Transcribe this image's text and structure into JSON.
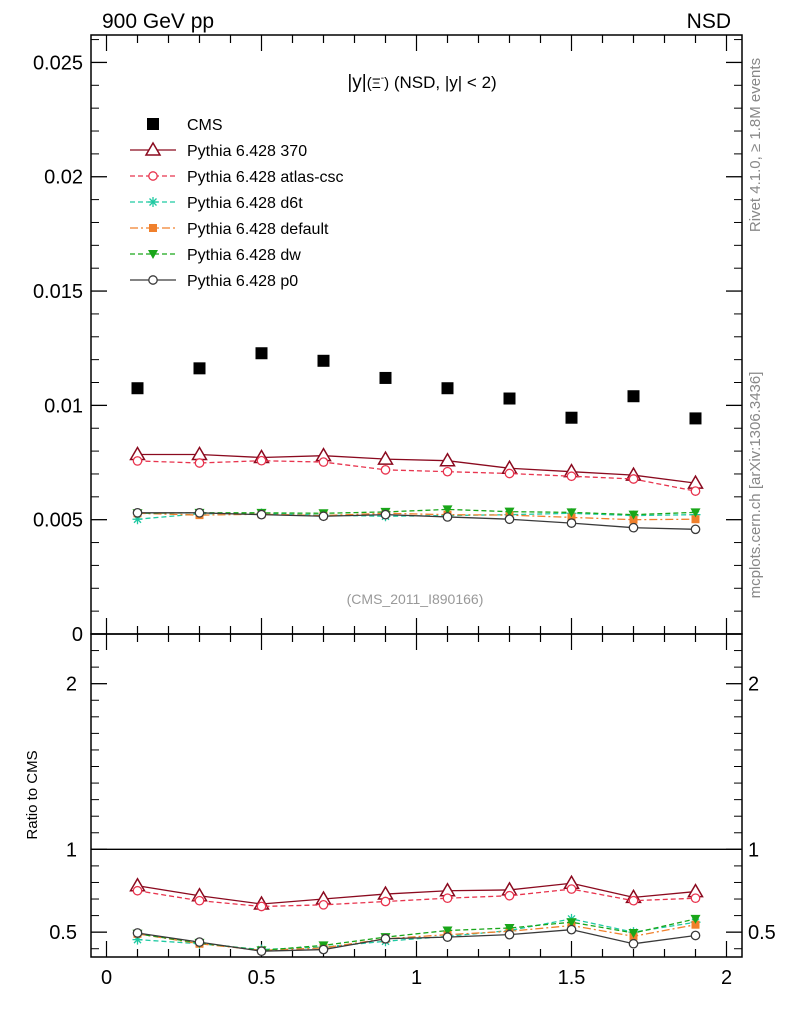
{
  "header": {
    "left": "900 GeV pp",
    "right": "NSD"
  },
  "side_labels": {
    "top": "Rivet 4.1.0, ≥ 1.8M events",
    "bottom": "mcplots.cern.ch [arXiv:1306.3436]"
  },
  "watermark": "(CMS_2011_I890166)",
  "colors": {
    "cms": "#000000",
    "p370": "#8b0a1f",
    "atlas": "#e8344e",
    "d6t": "#1fc9a2",
    "default": "#f0802c",
    "dw": "#19a619",
    "p0": "#3a3a3a"
  },
  "chart_data": [
    {
      "type": "scatter",
      "title": "|y|(Ξ⁻) (NSD, |y| < 2)",
      "title_parts": {
        "y": "|y|",
        "open": "(",
        "xi": "Ξ",
        "minus": "-",
        "close": ")",
        "rest": " (NSD, |y| < 2)"
      },
      "xlabel": "",
      "ylabel": "",
      "xlim": [
        -0.05,
        2.05
      ],
      "ylim": [
        0,
        0.0262
      ],
      "y_ticks": [
        0,
        0.005,
        0.01,
        0.015,
        0.02,
        0.025
      ],
      "y_tick_labels": [
        "0",
        "0.005",
        "0.01",
        "0.015",
        "0.02",
        "0.025"
      ],
      "legend_position": "top-left",
      "x": [
        0.1,
        0.3,
        0.5,
        0.7,
        0.9,
        1.1,
        1.3,
        1.5,
        1.7,
        1.9
      ],
      "series": [
        {
          "name": "CMS",
          "key": "cms",
          "marker": "square-filled",
          "line": "none",
          "values": [
            0.01075,
            0.01162,
            0.01228,
            0.01195,
            0.0112,
            0.01075,
            0.0103,
            0.00946,
            0.0104,
            0.00943
          ]
        },
        {
          "name": "Pythia 6.428 370",
          "key": "p370",
          "marker": "triangle-open",
          "line": "solid",
          "values": [
            0.00785,
            0.00785,
            0.00772,
            0.0078,
            0.00765,
            0.00758,
            0.00725,
            0.0071,
            0.00695,
            0.0066
          ]
        },
        {
          "name": "Pythia 6.428 atlas-csc",
          "key": "atlas",
          "marker": "circle-open",
          "line": "dashed",
          "values": [
            0.00757,
            0.00748,
            0.00758,
            0.00752,
            0.00718,
            0.0071,
            0.00702,
            0.0069,
            0.00678,
            0.00625
          ]
        },
        {
          "name": "Pythia 6.428 d6t",
          "key": "d6t",
          "marker": "star",
          "line": "dashed",
          "values": [
            0.00502,
            0.00526,
            0.00527,
            0.0052,
            0.00515,
            0.00518,
            0.00522,
            0.00528,
            0.00518,
            0.00522
          ]
        },
        {
          "name": "Pythia 6.428 default",
          "key": "default",
          "marker": "square-filled-small",
          "line": "dashdot",
          "values": [
            0.00528,
            0.0052,
            0.00524,
            0.00518,
            0.00528,
            0.00522,
            0.0052,
            0.0051,
            0.005,
            0.00502
          ]
        },
        {
          "name": "Pythia 6.428 dw",
          "key": "dw",
          "marker": "triangle-down-filled",
          "line": "dashed",
          "values": [
            0.00528,
            0.0053,
            0.0053,
            0.00528,
            0.00534,
            0.00545,
            0.00535,
            0.00532,
            0.00522,
            0.00532
          ]
        },
        {
          "name": "Pythia 6.428 p0",
          "key": "p0",
          "marker": "circle-open",
          "line": "solid",
          "values": [
            0.0053,
            0.0053,
            0.00522,
            0.00515,
            0.00522,
            0.00512,
            0.00502,
            0.00485,
            0.00465,
            0.00458
          ]
        }
      ]
    },
    {
      "type": "scatter",
      "title": "",
      "xlabel": "",
      "ylabel": "Ratio to CMS",
      "xlim": [
        -0.05,
        2.05
      ],
      "ylim": [
        0.35,
        2.3
      ],
      "x_ticks": [
        0,
        0.5,
        1,
        1.5,
        2
      ],
      "x_tick_labels": [
        "0",
        "0.5",
        "1",
        "1.5",
        "2"
      ],
      "y_ticks": [
        0.5,
        1,
        2
      ],
      "y_tick_labels": [
        "0.5",
        "1",
        "2"
      ],
      "reference_line": 1,
      "x": [
        0.1,
        0.3,
        0.5,
        0.7,
        0.9,
        1.1,
        1.3,
        1.5,
        1.7,
        1.9
      ],
      "series": [
        {
          "name": "Pythia 6.428 370",
          "key": "p370",
          "marker": "triangle-open",
          "line": "solid",
          "values": [
            0.78,
            0.72,
            0.67,
            0.7,
            0.73,
            0.75,
            0.755,
            0.795,
            0.71,
            0.745
          ]
        },
        {
          "name": "Pythia 6.428 atlas-csc",
          "key": "atlas",
          "marker": "circle-open",
          "line": "dashed",
          "values": [
            0.75,
            0.69,
            0.655,
            0.665,
            0.685,
            0.705,
            0.72,
            0.76,
            0.69,
            0.705
          ]
        },
        {
          "name": "Pythia 6.428 d6t",
          "key": "d6t",
          "marker": "star",
          "line": "dashed",
          "values": [
            0.455,
            0.43,
            0.395,
            0.41,
            0.445,
            0.475,
            0.51,
            0.58,
            0.5,
            0.56
          ]
        },
        {
          "name": "Pythia 6.428 default",
          "key": "default",
          "marker": "square-filled-small",
          "line": "dashdot",
          "values": [
            0.49,
            0.43,
            0.39,
            0.405,
            0.46,
            0.485,
            0.505,
            0.54,
            0.475,
            0.545
          ]
        },
        {
          "name": "Pythia 6.428 dw",
          "key": "dw",
          "marker": "triangle-down-filled",
          "line": "dashed",
          "values": [
            0.49,
            0.435,
            0.39,
            0.42,
            0.47,
            0.51,
            0.525,
            0.56,
            0.495,
            0.58
          ]
        },
        {
          "name": "Pythia 6.428 p0",
          "key": "p0",
          "marker": "circle-open",
          "line": "solid",
          "values": [
            0.495,
            0.44,
            0.385,
            0.395,
            0.46,
            0.47,
            0.485,
            0.515,
            0.43,
            0.48
          ]
        }
      ]
    }
  ]
}
